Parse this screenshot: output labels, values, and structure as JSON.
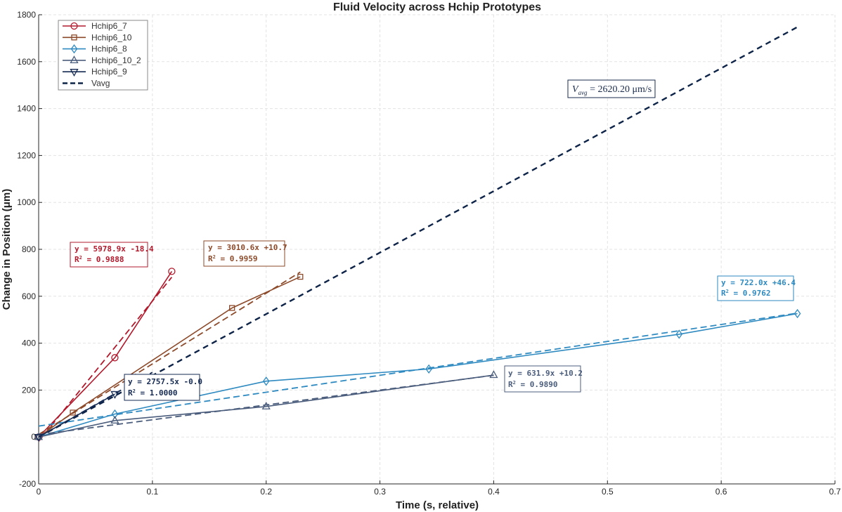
{
  "chart_data": {
    "type": "line",
    "title": "Fluid Velocity across Hchip Prototypes",
    "xlabel": "Time (s, relative)",
    "ylabel": "Change in Position (μm)",
    "xlim": [
      0,
      0.7
    ],
    "ylim": [
      -200,
      1800
    ],
    "xticks": [
      0,
      0.1,
      0.2,
      0.3,
      0.4,
      0.5,
      0.6,
      0.7
    ],
    "xtick_labels": [
      "0",
      "0.1",
      "0.2",
      "0.3",
      "0.4",
      "0.5",
      "0.6",
      "0.7"
    ],
    "yticks": [
      -200,
      0,
      200,
      400,
      600,
      800,
      1000,
      1200,
      1400,
      1600,
      1800
    ],
    "ytick_labels": [
      "-200",
      "0",
      "200",
      "400",
      "600",
      "800",
      "1000",
      "1200",
      "1400",
      "1600",
      "1800"
    ],
    "grid": true,
    "legend_position": "top-left",
    "series": [
      {
        "name": "Hchip6_7",
        "color": "#b2182b",
        "marker": "circle",
        "x": [
          0,
          0.067,
          0.117
        ],
        "y": [
          0,
          338,
          706
        ],
        "fit": {
          "slope": 5978.9,
          "intercept": -18.4,
          "x_range": [
            0,
            0.117
          ]
        },
        "equation": "y = 5978.9x -18.4",
        "r2_label": "R",
        "r2_value": " = 0.9888"
      },
      {
        "name": "Hchip6_10",
        "color": "#8c4a2a",
        "marker": "square",
        "x": [
          0,
          0.03,
          0.17,
          0.23
        ],
        "y": [
          0,
          104,
          550,
          683
        ],
        "fit": {
          "slope": 3010.6,
          "intercept": 10.7,
          "x_range": [
            0,
            0.23
          ]
        },
        "equation": "y = 3010.6x +10.7",
        "r2_label": "R",
        "r2_value": " = 0.9959"
      },
      {
        "name": "Hchip6_8",
        "color": "#2e8ac0",
        "marker": "diamond",
        "x": [
          0,
          0.067,
          0.2,
          0.343,
          0.563,
          0.667
        ],
        "y": [
          0,
          98,
          238,
          290,
          438,
          526
        ],
        "fit": {
          "slope": 722.0,
          "intercept": 46.4,
          "x_range": [
            0,
            0.667
          ]
        },
        "equation": "y = 722.0x +46.4",
        "r2_label": "R",
        "r2_value": " = 0.9762"
      },
      {
        "name": "Hchip6_10_2",
        "color": "#4b5d7c",
        "marker": "triangle-up",
        "x": [
          0,
          0.067,
          0.2,
          0.4
        ],
        "y": [
          0,
          70,
          130,
          264
        ],
        "fit": {
          "slope": 631.9,
          "intercept": 10.2,
          "x_range": [
            0,
            0.4
          ]
        },
        "equation": "y = 631.9x +10.2",
        "r2_label": "R",
        "r2_value": " = 0.9890"
      },
      {
        "name": "Hchip6_9",
        "color": "#152a52",
        "marker": "triangle-down",
        "x": [
          0,
          0.067
        ],
        "y": [
          0,
          183
        ],
        "fit": {
          "slope": 2757.5,
          "intercept": -0.0,
          "x_range": [
            0,
            0.1
          ]
        },
        "equation": "y = 2757.5x -0.0",
        "r2_label": "R",
        "r2_value": " = 1.0000"
      }
    ],
    "vavg": {
      "name": "Vavg",
      "color": "#0d2347",
      "slope": 2620.2,
      "intercept": 0,
      "x_range": [
        0,
        0.667
      ],
      "label_main": "V",
      "label_sub": "avg",
      "label_rest": " = 2620.20 μm/s"
    }
  }
}
